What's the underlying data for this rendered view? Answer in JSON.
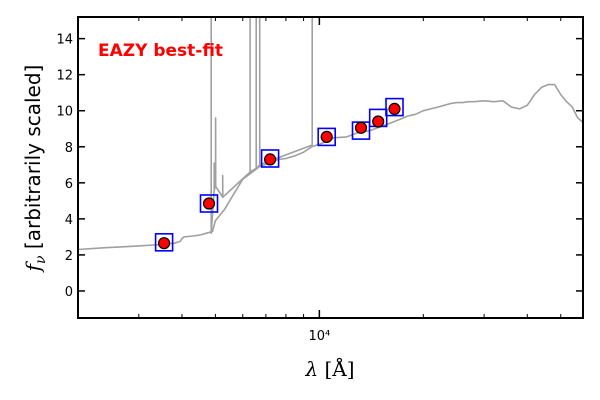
{
  "chart_data": {
    "type": "scatter",
    "title": "",
    "annotation": "EAZY best-fit",
    "xlabel": "λ [Å]",
    "ylabel": "f_ν [arbitrarily scaled]",
    "xscale": "log",
    "xlim": [
      2000,
      58000
    ],
    "ylim": [
      -1.5,
      15.2
    ],
    "yticks": [
      0,
      2,
      4,
      6,
      8,
      10,
      12,
      14
    ],
    "xtick_labels": [
      {
        "value": 10000,
        "label": "10⁴"
      }
    ],
    "grid": false,
    "legend": "none",
    "colors": {
      "spectrum": "#a0a0a0",
      "observed_fill": "#ff0000",
      "observed_edge": "#000000",
      "model_box": "#0000ff",
      "annotation": "#ff0000"
    },
    "series": [
      {
        "kind": "line",
        "x": [
          2000,
          2400,
          2700,
          3000,
          3300,
          3600,
          3800,
          3950,
          4000,
          4050,
          4300,
          4500,
          4700,
          4900,
          5000,
          5300,
          5700,
          6000,
          6400,
          6500,
          6700,
          6800,
          7200,
          7600,
          8000,
          8500,
          9000,
          9500,
          10000,
          10500,
          11000,
          12000,
          13000,
          14000,
          15000,
          16000,
          17000,
          18000,
          19000,
          20000,
          21000,
          22000,
          23000,
          24000,
          25000,
          26000,
          27000,
          28000,
          30000,
          32000,
          34000,
          36000,
          38000,
          40000,
          42000,
          44000,
          46000,
          48000,
          50000,
          52000,
          54000,
          56000,
          58000
        ],
        "y": [
          2.3,
          2.4,
          2.45,
          2.5,
          2.55,
          2.6,
          2.65,
          2.75,
          2.9,
          3.0,
          3.05,
          3.1,
          3.2,
          3.3,
          3.9,
          4.5,
          5.5,
          6.2,
          6.6,
          6.7,
          6.9,
          6.95,
          7.1,
          7.3,
          7.35,
          7.5,
          7.7,
          8.0,
          8.15,
          8.3,
          8.5,
          8.55,
          8.8,
          8.9,
          9.1,
          9.3,
          9.5,
          9.7,
          9.8,
          10.0,
          10.1,
          10.2,
          10.3,
          10.4,
          10.45,
          10.45,
          10.5,
          10.5,
          10.55,
          10.5,
          10.55,
          10.2,
          10.1,
          10.3,
          10.9,
          11.3,
          11.45,
          11.45,
          10.9,
          10.5,
          10.2,
          9.6,
          9.35
        ]
      },
      {
        "kind": "line",
        "x": [
          4860,
          4861,
          4862,
          4960,
          4959,
          4961,
          5007,
          5006,
          5008,
          5250,
          5249,
          5251,
          6300,
          6299,
          6301,
          6561,
          6562,
          6563,
          6717,
          6718,
          6719,
          9530,
          9531,
          9532
        ],
        "y": [
          3.2,
          16.5,
          3.2,
          5.6,
          7.1,
          5.6,
          5.8,
          9.6,
          5.8,
          5.2,
          6.4,
          5.2,
          6.6,
          16.5,
          6.6,
          6.8,
          16.5,
          6.8,
          7.0,
          16.5,
          7.0,
          8.1,
          16.5,
          8.1
        ]
      },
      {
        "kind": "scatter",
        "marker": "o",
        "x": [
          3550,
          4790,
          7200,
          10500,
          13200,
          14800,
          16500
        ],
        "y": [
          2.65,
          4.85,
          7.3,
          8.55,
          9.05,
          9.4,
          10.1
        ]
      },
      {
        "kind": "scatter",
        "marker": "s",
        "x": [
          3550,
          4790,
          7200,
          10500,
          13200,
          14800,
          16500
        ],
        "y": [
          2.7,
          4.85,
          7.35,
          8.55,
          8.9,
          9.6,
          10.2
        ]
      }
    ]
  }
}
